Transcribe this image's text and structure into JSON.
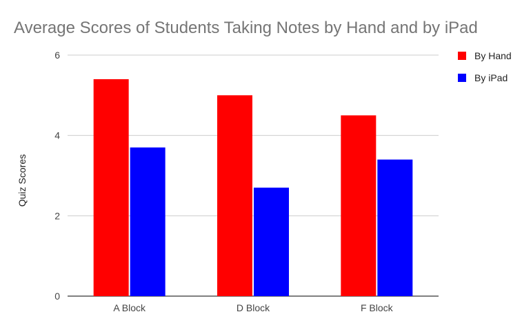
{
  "chart_data": {
    "type": "bar",
    "title": "Average Scores of Students Taking Notes by Hand and by iPad",
    "xlabel": "",
    "ylabel": "Quiz Scores",
    "categories": [
      "A Block",
      "D Block",
      "F Block"
    ],
    "series": [
      {
        "name": "By Hand",
        "color": "#ff0000",
        "values": [
          5.4,
          5.0,
          4.5
        ]
      },
      {
        "name": "By iPad",
        "color": "#0000ff",
        "values": [
          3.7,
          2.7,
          3.4
        ]
      }
    ],
    "ylim": [
      0,
      6
    ],
    "yticks": [
      "0",
      "2",
      "4",
      "6"
    ],
    "grid": true,
    "legend_position": "right"
  }
}
